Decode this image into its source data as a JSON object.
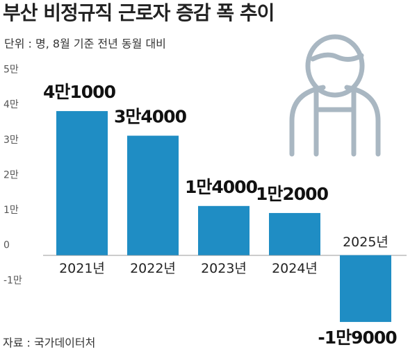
{
  "chart_data": {
    "type": "bar",
    "title": "부산 비정규직 근로자 증감 폭 추이",
    "subtitle": "단위 : 명, 8월 기준 전년 동월 대비",
    "source": "자료 : 국가데이터처",
    "categories": [
      "2021년",
      "2022년",
      "2023년",
      "2024년",
      "2025년"
    ],
    "values": [
      41000,
      34000,
      14000,
      12000,
      -19000
    ],
    "value_labels": [
      "4만1000",
      "3만4000",
      "1만4000",
      "1만2000",
      "-1만9000"
    ],
    "color": "#1f8dc4",
    "ylim": [
      -20000,
      50000
    ],
    "yticks": [
      {
        "value": 50000,
        "label": "5만"
      },
      {
        "value": 40000,
        "label": "4만"
      },
      {
        "value": 30000,
        "label": "3만"
      },
      {
        "value": 20000,
        "label": "2만"
      },
      {
        "value": 10000,
        "label": "1만"
      },
      0,
      {
        "value": -10000,
        "label": "-1만"
      }
    ],
    "grid": false
  }
}
